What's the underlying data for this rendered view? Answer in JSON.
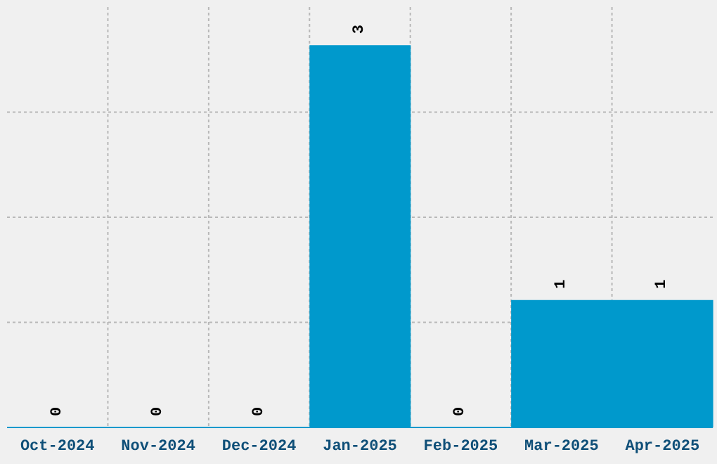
{
  "chart_data": {
    "type": "bar",
    "categories": [
      "Oct-2024",
      "Nov-2024",
      "Dec-2024",
      "Jan-2025",
      "Feb-2025",
      "Mar-2025",
      "Apr-2025"
    ],
    "values": [
      0,
      0,
      0,
      3,
      0,
      1,
      1
    ],
    "color": "#0099cc",
    "relative": false,
    "data_labels": true,
    "grid": true
  }
}
